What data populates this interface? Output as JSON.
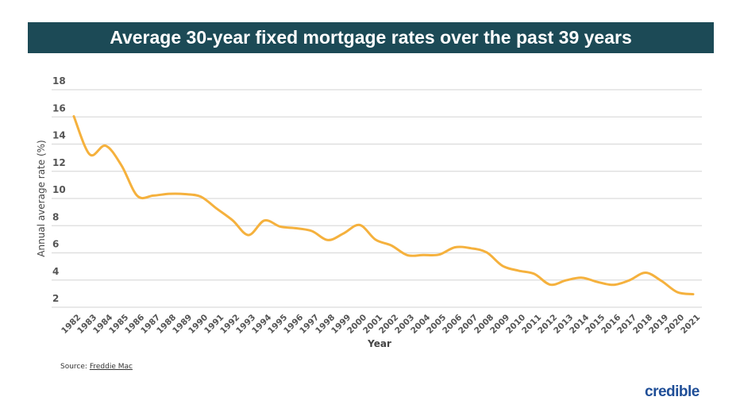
{
  "title": "Average 30-year fixed mortgage rates over the past 39 years",
  "source_label": "Source:",
  "source_link": "Freddie Mac",
  "logo": "credible",
  "colors": {
    "title_bar": "#1c4a56",
    "line": "#f5b13d",
    "logo": "#1f4e97"
  },
  "chart_data": {
    "type": "line",
    "title": "Average 30-year fixed mortgage rates over the past 39 years",
    "xlabel": "Year",
    "ylabel": "Annual average rate (%)",
    "ylim": [
      2,
      18
    ],
    "yticks": [
      2,
      4,
      6,
      8,
      10,
      12,
      14,
      16,
      18
    ],
    "grid": true,
    "x": [
      "1982",
      "1983",
      "1984",
      "1985",
      "1986",
      "1987",
      "1988",
      "1989",
      "1990",
      "1991",
      "1992",
      "1993",
      "1994",
      "1995",
      "1996",
      "1997",
      "1998",
      "1999",
      "2000",
      "2001",
      "2002",
      "2003",
      "2004",
      "2005",
      "2006",
      "2007",
      "2008",
      "2009",
      "2010",
      "2011",
      "2012",
      "2013",
      "2014",
      "2015",
      "2016",
      "2017",
      "2018",
      "2019",
      "2020",
      "2021"
    ],
    "values": [
      16.04,
      13.24,
      13.88,
      12.43,
      10.19,
      10.21,
      10.34,
      10.32,
      10.13,
      9.25,
      8.39,
      7.31,
      8.38,
      7.93,
      7.81,
      7.6,
      6.94,
      7.44,
      8.05,
      6.97,
      6.54,
      5.83,
      5.84,
      5.87,
      6.41,
      6.34,
      6.03,
      5.04,
      4.69,
      4.45,
      3.66,
      3.98,
      4.17,
      3.85,
      3.65,
      3.99,
      4.54,
      3.94,
      3.11,
      2.96
    ]
  }
}
